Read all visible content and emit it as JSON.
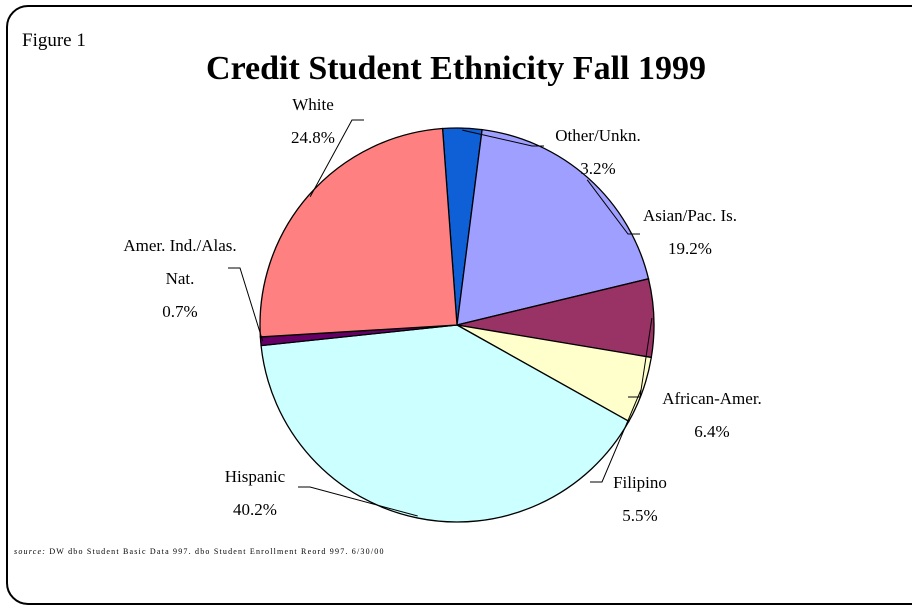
{
  "figure_label": "Figure 1",
  "source": {
    "prefix": "source:",
    "text": "DW dbo Student Basic Data 997. dbo Student Enrollment Reord 997. 6/30/00"
  },
  "chart_data": {
    "type": "pie",
    "title": "Credit Student Ethnicity Fall 1999",
    "start_angle_deg": -4.2,
    "direction": "clockwise",
    "slices": [
      {
        "label": "Other/Unkn.",
        "value": 3.2,
        "display": "3.2%",
        "color": "#0f5fd6"
      },
      {
        "label": "Asian/Pac. Is.",
        "value": 19.2,
        "display": "19.2%",
        "color": "#9f9fff"
      },
      {
        "label": "African-Amer.",
        "value": 6.4,
        "display": "6.4%",
        "color": "#993366"
      },
      {
        "label": "Filipino",
        "value": 5.5,
        "display": "5.5%",
        "color": "#ffffcc"
      },
      {
        "label": "Hispanic",
        "value": 40.2,
        "display": "40.2%",
        "color": "#ccffff"
      },
      {
        "label": "Amer. Ind./Alas. Nat.",
        "value": 0.7,
        "display": "0.7%",
        "color": "#660066"
      },
      {
        "label": "White",
        "value": 24.8,
        "display": "24.8%",
        "color": "#ff8080"
      }
    ]
  }
}
